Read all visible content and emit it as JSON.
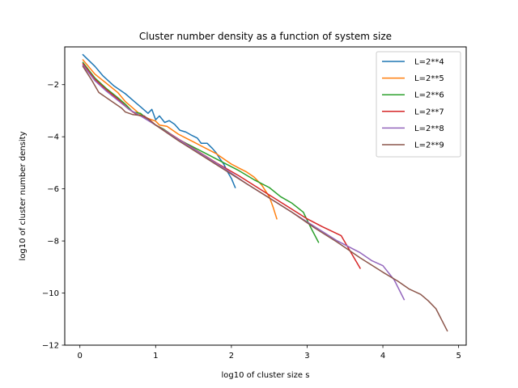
{
  "chart_data": {
    "type": "line",
    "title": "Cluster number density as a function of system size",
    "xlabel": "log10 of cluster size s",
    "ylabel": "log10 of cluster number density",
    "xlim": [
      -0.2,
      5.1
    ],
    "ylim": [
      -12,
      -0.55
    ],
    "xticks": [
      0,
      1,
      2,
      3,
      4,
      5
    ],
    "yticks": [
      -12,
      -10,
      -8,
      -6,
      -4,
      -2
    ],
    "grid": false,
    "legend_position": "top-right",
    "series": [
      {
        "name": "L=2**4",
        "color": "#1f77b4",
        "points": [
          [
            0.04,
            -0.85
          ],
          [
            0.2,
            -1.3
          ],
          [
            0.3,
            -1.65
          ],
          [
            0.45,
            -2.05
          ],
          [
            0.6,
            -2.35
          ],
          [
            0.7,
            -2.6
          ],
          [
            0.8,
            -2.85
          ],
          [
            0.9,
            -3.1
          ],
          [
            0.95,
            -2.95
          ],
          [
            1.0,
            -3.35
          ],
          [
            1.05,
            -3.2
          ],
          [
            1.12,
            -3.45
          ],
          [
            1.18,
            -3.38
          ],
          [
            1.25,
            -3.52
          ],
          [
            1.32,
            -3.75
          ],
          [
            1.4,
            -3.82
          ],
          [
            1.48,
            -3.95
          ],
          [
            1.55,
            -4.05
          ],
          [
            1.6,
            -4.25
          ],
          [
            1.68,
            -4.25
          ],
          [
            1.75,
            -4.45
          ],
          [
            1.8,
            -4.62
          ],
          [
            1.85,
            -4.85
          ],
          [
            1.9,
            -5.05
          ],
          [
            1.95,
            -5.35
          ],
          [
            2.0,
            -5.6
          ],
          [
            2.05,
            -5.95
          ]
        ]
      },
      {
        "name": "L=2**5",
        "color": "#ff7f0e",
        "points": [
          [
            0.04,
            -1.05
          ],
          [
            0.2,
            -1.6
          ],
          [
            0.35,
            -1.95
          ],
          [
            0.5,
            -2.3
          ],
          [
            0.6,
            -2.65
          ],
          [
            0.7,
            -2.9
          ],
          [
            0.8,
            -3.15
          ],
          [
            0.9,
            -3.3
          ],
          [
            1.0,
            -3.4
          ],
          [
            1.05,
            -3.55
          ],
          [
            1.15,
            -3.6
          ],
          [
            1.2,
            -3.7
          ],
          [
            1.3,
            -3.9
          ],
          [
            1.4,
            -4.05
          ],
          [
            1.5,
            -4.2
          ],
          [
            1.6,
            -4.35
          ],
          [
            1.7,
            -4.5
          ],
          [
            1.8,
            -4.65
          ],
          [
            1.9,
            -4.85
          ],
          [
            2.0,
            -5.05
          ],
          [
            2.1,
            -5.2
          ],
          [
            2.2,
            -5.35
          ],
          [
            2.3,
            -5.55
          ],
          [
            2.4,
            -5.85
          ],
          [
            2.5,
            -6.3
          ],
          [
            2.55,
            -6.7
          ],
          [
            2.6,
            -7.15
          ]
        ]
      },
      {
        "name": "L=2**6",
        "color": "#2ca02c",
        "points": [
          [
            0.04,
            -1.15
          ],
          [
            0.2,
            -1.75
          ],
          [
            0.35,
            -2.15
          ],
          [
            0.5,
            -2.5
          ],
          [
            0.6,
            -2.75
          ],
          [
            0.7,
            -3.05
          ],
          [
            0.8,
            -3.1
          ],
          [
            0.9,
            -3.35
          ],
          [
            1.0,
            -3.55
          ],
          [
            1.1,
            -3.7
          ],
          [
            1.2,
            -3.9
          ],
          [
            1.3,
            -4.1
          ],
          [
            1.5,
            -4.4
          ],
          [
            1.7,
            -4.7
          ],
          [
            1.9,
            -5.0
          ],
          [
            2.1,
            -5.3
          ],
          [
            2.3,
            -5.65
          ],
          [
            2.5,
            -5.95
          ],
          [
            2.65,
            -6.3
          ],
          [
            2.8,
            -6.55
          ],
          [
            2.95,
            -6.9
          ],
          [
            3.05,
            -7.5
          ],
          [
            3.15,
            -8.05
          ]
        ]
      },
      {
        "name": "L=2**7",
        "color": "#d62728",
        "points": [
          [
            0.04,
            -1.2
          ],
          [
            0.2,
            -1.8
          ],
          [
            0.35,
            -2.2
          ],
          [
            0.5,
            -2.55
          ],
          [
            0.65,
            -2.95
          ],
          [
            0.75,
            -3.15
          ],
          [
            0.9,
            -3.3
          ],
          [
            1.0,
            -3.55
          ],
          [
            1.2,
            -3.9
          ],
          [
            1.5,
            -4.45
          ],
          [
            1.8,
            -5.0
          ],
          [
            2.1,
            -5.5
          ],
          [
            2.4,
            -6.05
          ],
          [
            2.7,
            -6.6
          ],
          [
            3.0,
            -7.15
          ],
          [
            3.2,
            -7.45
          ],
          [
            3.45,
            -7.8
          ],
          [
            3.55,
            -8.3
          ],
          [
            3.7,
            -9.05
          ]
        ]
      },
      {
        "name": "L=2**8",
        "color": "#9467bd",
        "points": [
          [
            0.04,
            -1.25
          ],
          [
            0.2,
            -1.85
          ],
          [
            0.35,
            -2.25
          ],
          [
            0.5,
            -2.6
          ],
          [
            0.65,
            -2.95
          ],
          [
            0.8,
            -3.2
          ],
          [
            1.0,
            -3.55
          ],
          [
            1.3,
            -4.1
          ],
          [
            1.6,
            -4.65
          ],
          [
            1.9,
            -5.2
          ],
          [
            2.2,
            -5.8
          ],
          [
            2.5,
            -6.35
          ],
          [
            2.8,
            -6.9
          ],
          [
            3.1,
            -7.45
          ],
          [
            3.4,
            -8.0
          ],
          [
            3.7,
            -8.45
          ],
          [
            3.85,
            -8.75
          ],
          [
            4.0,
            -8.95
          ],
          [
            4.15,
            -9.5
          ],
          [
            4.28,
            -10.25
          ]
        ]
      },
      {
        "name": "L=2**9",
        "color": "#8c564b",
        "points": [
          [
            0.04,
            -1.3
          ],
          [
            0.15,
            -1.8
          ],
          [
            0.25,
            -2.3
          ],
          [
            0.4,
            -2.6
          ],
          [
            0.55,
            -2.9
          ],
          [
            0.6,
            -3.05
          ],
          [
            0.7,
            -3.15
          ],
          [
            0.85,
            -3.2
          ],
          [
            1.0,
            -3.55
          ],
          [
            1.3,
            -4.15
          ],
          [
            1.6,
            -4.7
          ],
          [
            1.9,
            -5.25
          ],
          [
            2.2,
            -5.8
          ],
          [
            2.5,
            -6.35
          ],
          [
            2.8,
            -6.9
          ],
          [
            3.1,
            -7.5
          ],
          [
            3.4,
            -8.05
          ],
          [
            3.7,
            -8.65
          ],
          [
            4.0,
            -9.2
          ],
          [
            4.2,
            -9.55
          ],
          [
            4.35,
            -9.85
          ],
          [
            4.5,
            -10.05
          ],
          [
            4.6,
            -10.3
          ],
          [
            4.7,
            -10.6
          ],
          [
            4.85,
            -11.45
          ]
        ]
      }
    ]
  }
}
